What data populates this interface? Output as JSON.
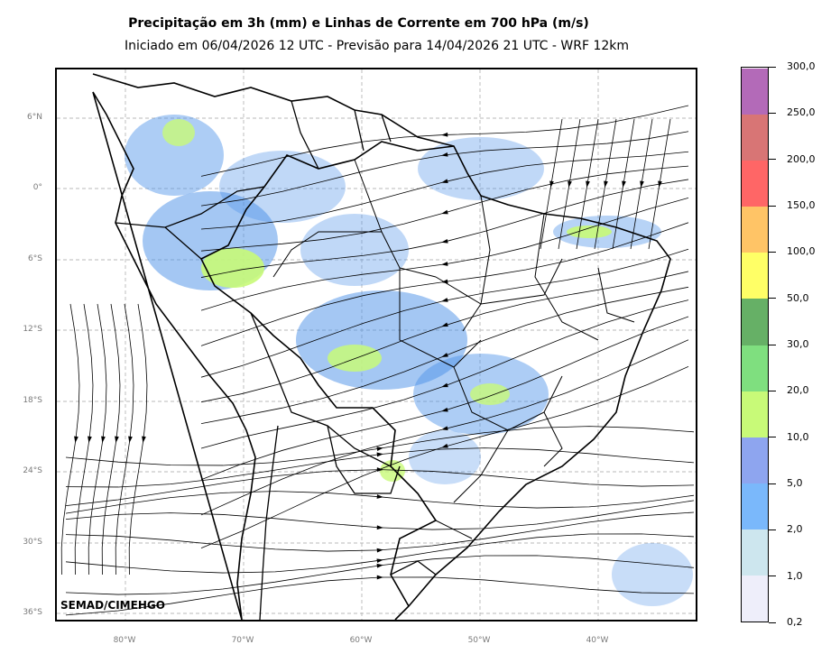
{
  "title": "Precipitação em 3h (mm) e Linhas de Corrente em 700 hPa (m/s)",
  "subtitle": "Iniciado em 06/04/2026 12 UTC - Previsão para 14/04/2026 21 UTC - WRF 12km",
  "credit": "SEMAD/CIMEHGO",
  "latitude_labels": [
    "6°N",
    "0°",
    "6°S",
    "12°S",
    "18°S",
    "24°S",
    "30°S",
    "36°S"
  ],
  "longitude_labels": [
    "80°W",
    "70°W",
    "60°W",
    "50°W",
    "40°W"
  ],
  "colorbar": {
    "labels": [
      "0,2",
      "1,0",
      "2,0",
      "5,0",
      "10,0",
      "20,0",
      "30,0",
      "50,0",
      "100,0",
      "150,0",
      "200,0",
      "250,0",
      "300,0"
    ],
    "colors": [
      "#eeeefa",
      "#cde6ee",
      "#7ab8fb",
      "#8ea5ef",
      "#c8fa78",
      "#7fdf7f",
      "#66b066",
      "#ffff66",
      "#ffc466",
      "#ff6666",
      "#d87575",
      "#b36ab8"
    ]
  },
  "map_colors": {
    "precip_light": "#4a90e8",
    "precip_moderate": "#c8fa78",
    "streamlines": "#000000",
    "borders": "#000000",
    "grid": "#b0b0b0"
  }
}
